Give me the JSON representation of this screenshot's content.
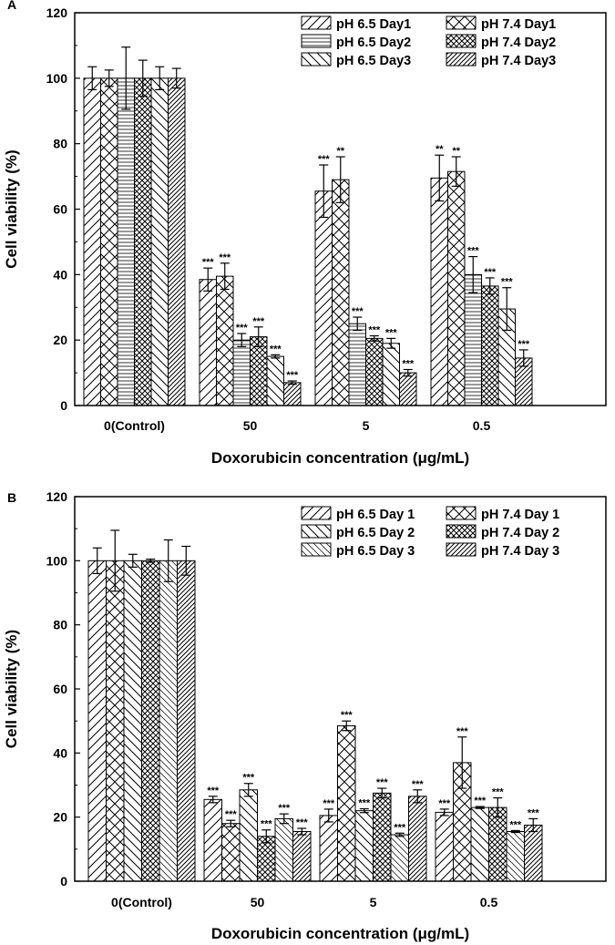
{
  "chart_data": [
    {
      "panel": "A",
      "type": "bar",
      "xlabel": "Doxorubicin concentration (μg/mL)",
      "ylabel": "Cell viability (%)",
      "ylim": [
        0,
        120
      ],
      "yticks": [
        "0",
        "20",
        "40",
        "60",
        "80",
        "100",
        "120"
      ],
      "categories": [
        "0(Control)",
        "50",
        "5",
        "0.5"
      ],
      "legend_position": "top-right",
      "series": [
        {
          "name": "pH 6.5 Day1",
          "pattern": "diag-right",
          "values": [
            100,
            38.5,
            65.5,
            69.5
          ],
          "errors": [
            3.5,
            3.5,
            8,
            7
          ],
          "sig": [
            "",
            "***",
            "***",
            "**"
          ]
        },
        {
          "name": "pH 7.4 Day1",
          "pattern": "cross",
          "values": [
            100,
            39.5,
            69,
            71.5
          ],
          "errors": [
            2.5,
            4,
            7,
            4.5
          ],
          "sig": [
            "",
            "***",
            "**",
            "**"
          ]
        },
        {
          "name": "pH 6.5 Day2",
          "pattern": "horizontal",
          "values": [
            100,
            20,
            25,
            40
          ],
          "errors": [
            9.5,
            2,
            2,
            5.5
          ],
          "sig": [
            "",
            "***",
            "***",
            "***"
          ]
        },
        {
          "name": "pH 7.4 Day2",
          "pattern": "dense-cross",
          "values": [
            100,
            21,
            20.5,
            36.5
          ],
          "errors": [
            5.5,
            3,
            0.8,
            2.5
          ],
          "sig": [
            "",
            "***",
            "***",
            "***"
          ]
        },
        {
          "name": "pH 6.5 Day3",
          "pattern": "diag-left",
          "values": [
            100,
            15,
            19,
            29.5
          ],
          "errors": [
            3.5,
            0.5,
            1.5,
            6.5
          ],
          "sig": [
            "",
            "***",
            "***",
            "***"
          ]
        },
        {
          "name": "pH 7.4 Day3",
          "pattern": "dense-diag",
          "values": [
            100,
            7,
            10,
            14.5
          ],
          "errors": [
            3,
            0.5,
            1,
            2.5
          ],
          "sig": [
            "",
            "***",
            "***",
            "***"
          ]
        }
      ]
    },
    {
      "panel": "B",
      "type": "bar",
      "xlabel": "Doxorubicin concentration (μg/mL)",
      "ylabel": "Cell viability (%)",
      "ylim": [
        0,
        120
      ],
      "yticks": [
        "0",
        "20",
        "40",
        "60",
        "80",
        "100",
        "120"
      ],
      "categories": [
        "0(Control)",
        "50",
        "5",
        "0.5"
      ],
      "legend_position": "top-right",
      "series": [
        {
          "name": "pH 6.5 Day 1",
          "pattern": "diag-right",
          "values": [
            100,
            25.5,
            20.5,
            21.5
          ],
          "errors": [
            4,
            1,
            2,
            1
          ],
          "sig": [
            "",
            "***",
            "***",
            "***"
          ]
        },
        {
          "name": "pH 7.4 Day 1",
          "pattern": "cross",
          "values": [
            100,
            18,
            48.5,
            37
          ],
          "errors": [
            9.5,
            1,
            1.5,
            8
          ],
          "sig": [
            "",
            "***",
            "***",
            "***"
          ]
        },
        {
          "name": "pH 6.5 Day 2",
          "pattern": "diag-left",
          "values": [
            100,
            28.5,
            22,
            23
          ],
          "errors": [
            2,
            2,
            0.6,
            0.3
          ],
          "sig": [
            "",
            "***",
            "***",
            "***"
          ]
        },
        {
          "name": "pH 7.4 Day 2",
          "pattern": "dense-cross",
          "values": [
            100,
            14,
            27.5,
            23
          ],
          "errors": [
            0.5,
            2,
            1.5,
            3
          ],
          "sig": [
            "",
            "***",
            "***",
            "***"
          ]
        },
        {
          "name": "pH 6.5 Day 3",
          "pattern": "diag-left-light",
          "values": [
            100,
            19.5,
            14.5,
            15.5
          ],
          "errors": [
            6.5,
            1.5,
            0.5,
            0.3
          ],
          "sig": [
            "",
            "***",
            "***",
            "***"
          ]
        },
        {
          "name": "pH 7.4 Day 3",
          "pattern": "dense-diag",
          "values": [
            100,
            15.5,
            26.5,
            17.5
          ],
          "errors": [
            4.5,
            1,
            2,
            2
          ],
          "sig": [
            "",
            "***",
            "***",
            "***"
          ]
        }
      ]
    }
  ]
}
